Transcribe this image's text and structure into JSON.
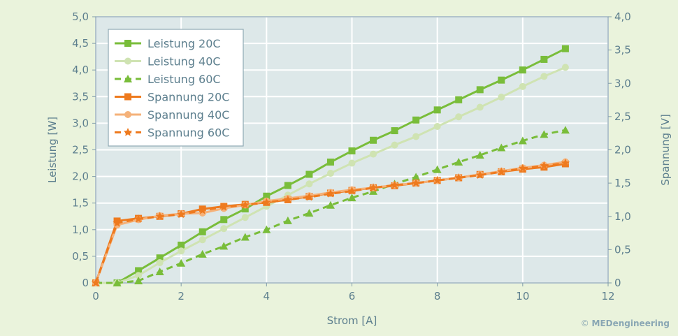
{
  "chart_data": {
    "type": "line",
    "xlabel": "Strom [A]",
    "ylabel_left": "Leistung [W]",
    "ylabel_right": "Spannung [V]",
    "xlim": [
      0,
      12
    ],
    "ylim_left": [
      0,
      5.0
    ],
    "ylim_right": [
      0,
      4.0
    ],
    "x_ticks": [
      "0",
      "2",
      "4",
      "6",
      "8",
      "10",
      "12"
    ],
    "y_left_ticks": [
      "0",
      "0,5",
      "1,0",
      "1,5",
      "2,0",
      "2,5",
      "3,0",
      "3,5",
      "4,0",
      "4,5",
      "5,0"
    ],
    "y_right_ticks": [
      "0",
      "0,5",
      "1,0",
      "1,5",
      "2,0",
      "2,5",
      "3,0",
      "3,5",
      "4,0"
    ],
    "grid": true,
    "legend_position": "top-left",
    "x": [
      0,
      0.5,
      1,
      1.5,
      2,
      2.5,
      3,
      3.5,
      4,
      4.5,
      5,
      5.5,
      6,
      6.5,
      7,
      7.5,
      8,
      8.5,
      9,
      9.5,
      10,
      10.5,
      11
    ],
    "series": [
      {
        "name": "Leistung 20C",
        "axis": "left",
        "color": "#79bd3a",
        "dash": "solid",
        "marker": "square",
        "values": [
          0,
          0,
          0.23,
          0.47,
          0.71,
          0.96,
          1.19,
          1.39,
          1.63,
          1.83,
          2.04,
          2.27,
          2.48,
          2.68,
          2.86,
          3.06,
          3.25,
          3.44,
          3.63,
          3.81,
          4.0,
          4.2,
          4.4
        ]
      },
      {
        "name": "Leistung 40C",
        "axis": "left",
        "color": "#cfe3b2",
        "dash": "solid",
        "marker": "circle",
        "values": [
          0,
          0,
          0.14,
          0.38,
          0.6,
          0.81,
          1.02,
          1.23,
          1.44,
          1.65,
          1.86,
          2.06,
          2.25,
          2.42,
          2.59,
          2.75,
          2.94,
          3.12,
          3.3,
          3.49,
          3.69,
          3.88,
          4.05
        ]
      },
      {
        "name": "Leistung 60C",
        "axis": "left",
        "color": "#79bd3a",
        "dash": "dashed",
        "marker": "triangle",
        "values": [
          0,
          0,
          0.04,
          0.21,
          0.37,
          0.54,
          0.69,
          0.86,
          1.0,
          1.17,
          1.31,
          1.46,
          1.6,
          1.72,
          1.86,
          1.99,
          2.13,
          2.27,
          2.4,
          2.54,
          2.67,
          2.79,
          2.87
        ]
      },
      {
        "name": "Spannung 20C",
        "axis": "right",
        "color": "#ee7a1e",
        "dash": "solid",
        "marker": "square",
        "values": [
          0,
          0.93,
          0.97,
          1.0,
          1.04,
          1.11,
          1.15,
          1.18,
          1.21,
          1.25,
          1.3,
          1.35,
          1.39,
          1.43,
          1.46,
          1.5,
          1.54,
          1.58,
          1.63,
          1.67,
          1.71,
          1.74,
          1.79
        ]
      },
      {
        "name": "Spannung 40C",
        "axis": "right",
        "color": "#f5b27a",
        "dash": "solid",
        "marker": "circle",
        "values": [
          0,
          0.87,
          0.95,
          1.01,
          1.04,
          1.05,
          1.12,
          1.17,
          1.23,
          1.27,
          1.31,
          1.36,
          1.4,
          1.43,
          1.47,
          1.5,
          1.54,
          1.58,
          1.63,
          1.68,
          1.73,
          1.77,
          1.82
        ]
      },
      {
        "name": "Spannung 60C",
        "axis": "right",
        "color": "#ee7a1e",
        "dash": "dashed",
        "marker": "star",
        "values": [
          0,
          0.9,
          0.96,
          1.0,
          1.03,
          1.09,
          1.14,
          1.17,
          1.21,
          1.25,
          1.29,
          1.34,
          1.38,
          1.43,
          1.47,
          1.5,
          1.54,
          1.58,
          1.62,
          1.67,
          1.72,
          1.76,
          1.8
        ]
      }
    ]
  },
  "credit": {
    "symbol": "©",
    "brand": "MED",
    "rest": "engineering"
  }
}
